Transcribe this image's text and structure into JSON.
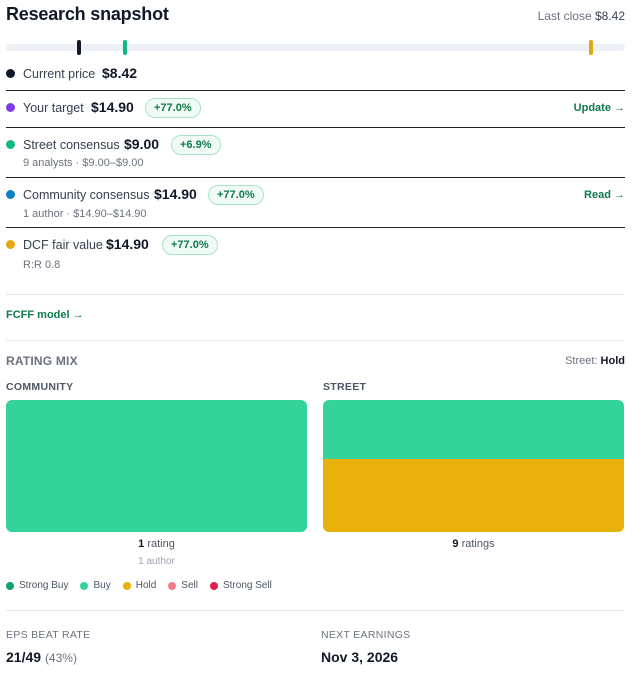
{
  "header": {
    "title": "Research snapshot",
    "last_close_label": "Last close",
    "last_close_value": "$8.42"
  },
  "track": {
    "markers": [
      {
        "name": "Current price",
        "value": 8.42,
        "color": "#111827"
      },
      {
        "name": "Street consensus",
        "value": 9.0,
        "color": "#10b981"
      },
      {
        "name": "DCF fair value",
        "value": 14.9,
        "color": "#e5a614"
      }
    ]
  },
  "rows": {
    "current": {
      "label": "Current price",
      "value": "$8.42",
      "color": "#111827"
    },
    "target": {
      "label": "Your target",
      "value": "$14.90",
      "pill": "+77.0%",
      "action": "Update →",
      "color": "#7c3aed"
    },
    "street": {
      "label": "Street consensus",
      "value": "$9.00",
      "pill": "+6.9%",
      "sub": "9 analysts · $9.00–$9.00",
      "color": "#10b981"
    },
    "community": {
      "label": "Community consensus",
      "value": "$14.90",
      "pill": "+77.0%",
      "sub": "1 author · $14.90–$14.90",
      "action": "Read →",
      "color": "#0a7fc2"
    },
    "dcf": {
      "label": "DCF fair value",
      "value": "$14.90",
      "pill": "+77.0%",
      "sub": "R:R 0.8",
      "color": "#e5a614"
    }
  },
  "model_link": "FCFF model →",
  "rating_mix": {
    "title": "RATING MIX",
    "street_summary_label": "Street:",
    "street_summary_value": "Hold",
    "community": {
      "label": "COMMUNITY",
      "count": "1",
      "count_suffix": "rating",
      "sub": "1 author",
      "segments": [
        {
          "rating": "Buy",
          "fraction": 1.0
        }
      ]
    },
    "street": {
      "label": "STREET",
      "count": "9",
      "count_suffix": "ratings",
      "segments": [
        {
          "rating": "Buy",
          "fraction": 0.444
        },
        {
          "rating": "Hold",
          "fraction": 0.556
        }
      ]
    },
    "legend": [
      {
        "label": "Strong Buy",
        "color": "#0d9f6e"
      },
      {
        "label": "Buy",
        "color": "#34d399"
      },
      {
        "label": "Hold",
        "color": "#e8b00b"
      },
      {
        "label": "Sell",
        "color": "#f07a8c"
      },
      {
        "label": "Strong Sell",
        "color": "#e11d48"
      }
    ]
  },
  "stats": {
    "eps_label": "EPS BEAT RATE",
    "eps_value": "21/49",
    "eps_pct": "(43%)",
    "earnings_label": "NEXT EARNINGS",
    "earnings_value": "Nov 3, 2026"
  }
}
